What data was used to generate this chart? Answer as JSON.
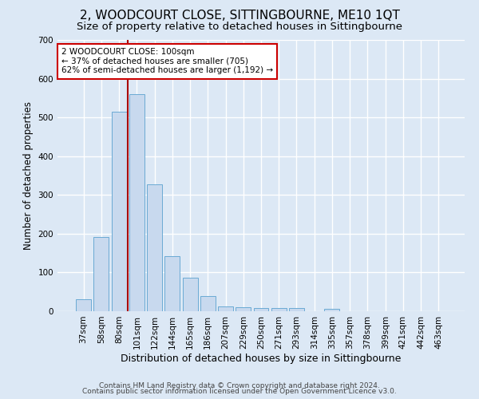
{
  "title": "2, WOODCOURT CLOSE, SITTINGBOURNE, ME10 1QT",
  "subtitle": "Size of property relative to detached houses in Sittingbourne",
  "xlabel": "Distribution of detached houses by size in Sittingbourne",
  "ylabel": "Number of detached properties",
  "footer_line1": "Contains HM Land Registry data © Crown copyright and database right 2024.",
  "footer_line2": "Contains public sector information licensed under the Open Government Licence v3.0.",
  "categories": [
    "37sqm",
    "58sqm",
    "80sqm",
    "101sqm",
    "122sqm",
    "144sqm",
    "165sqm",
    "186sqm",
    "207sqm",
    "229sqm",
    "250sqm",
    "271sqm",
    "293sqm",
    "314sqm",
    "335sqm",
    "357sqm",
    "378sqm",
    "399sqm",
    "421sqm",
    "442sqm",
    "463sqm"
  ],
  "values": [
    30,
    191,
    514,
    560,
    328,
    142,
    86,
    40,
    13,
    10,
    8,
    8,
    8,
    0,
    6,
    0,
    0,
    0,
    0,
    0,
    0
  ],
  "bar_color": "#c8d9ee",
  "bar_edge_color": "#6aaad4",
  "vline_color": "#aa0000",
  "vline_x_index": 2,
  "annotation_text": "2 WOODCOURT CLOSE: 100sqm\n← 37% of detached houses are smaller (705)\n62% of semi-detached houses are larger (1,192) →",
  "annotation_box_facecolor": "#ffffff",
  "annotation_box_edgecolor": "#cc0000",
  "ylim": [
    0,
    700
  ],
  "yticks": [
    0,
    100,
    200,
    300,
    400,
    500,
    600,
    700
  ],
  "background_color": "#dce8f5",
  "axes_facecolor": "#dce8f5",
  "grid_color": "#ffffff",
  "title_fontsize": 11,
  "subtitle_fontsize": 9.5,
  "ylabel_fontsize": 8.5,
  "xlabel_fontsize": 9,
  "tick_fontsize": 7.5,
  "annotation_fontsize": 7.5,
  "footer_fontsize": 6.5
}
